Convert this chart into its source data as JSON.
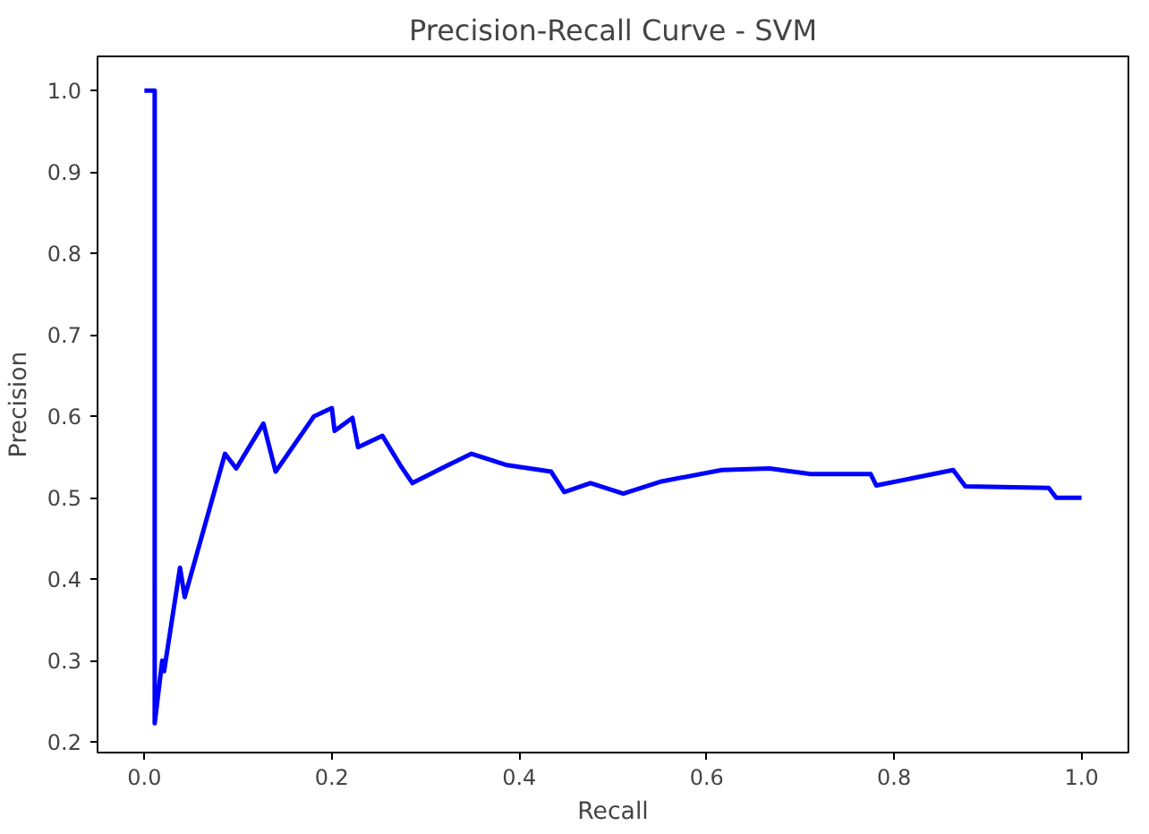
{
  "chart_data": {
    "type": "line",
    "title": "Precision-Recall Curve - SVM",
    "xlabel": "Recall",
    "ylabel": "Precision",
    "series": [
      {
        "color": "#0000ff",
        "x": [
          0.0,
          0.011,
          0.011,
          0.019,
          0.021,
          0.038,
          0.043,
          0.086,
          0.098,
          0.127,
          0.14,
          0.181,
          0.2,
          0.203,
          0.222,
          0.228,
          0.254,
          0.273,
          0.286,
          0.324,
          0.349,
          0.387,
          0.434,
          0.448,
          0.476,
          0.511,
          0.552,
          0.616,
          0.667,
          0.711,
          0.775,
          0.781,
          0.863,
          0.876,
          0.965,
          0.973,
          1.0
        ],
        "values": [
          1.0,
          1.0,
          0.223,
          0.3,
          0.287,
          0.414,
          0.378,
          0.554,
          0.536,
          0.591,
          0.532,
          0.6,
          0.61,
          0.582,
          0.598,
          0.562,
          0.576,
          0.54,
          0.518,
          0.54,
          0.554,
          0.54,
          0.532,
          0.507,
          0.518,
          0.505,
          0.52,
          0.534,
          0.536,
          0.529,
          0.529,
          0.515,
          0.534,
          0.514,
          0.512,
          0.5,
          0.5
        ]
      }
    ],
    "xlim": [
      -0.05,
      1.05
    ],
    "ylim": [
      0.187,
      1.042
    ],
    "xticks": [
      {
        "value": 0.0,
        "label": "0.0"
      },
      {
        "value": 0.2,
        "label": "0.2"
      },
      {
        "value": 0.4,
        "label": "0.4"
      },
      {
        "value": 0.6,
        "label": "0.6"
      },
      {
        "value": 0.8,
        "label": "0.8"
      },
      {
        "value": 1.0,
        "label": "1.0"
      }
    ],
    "yticks": [
      {
        "value": 0.2,
        "label": "0.2"
      },
      {
        "value": 0.3,
        "label": "0.3"
      },
      {
        "value": 0.4,
        "label": "0.4"
      },
      {
        "value": 0.5,
        "label": "0.5"
      },
      {
        "value": 0.6,
        "label": "0.6"
      },
      {
        "value": 0.7,
        "label": "0.7"
      },
      {
        "value": 0.8,
        "label": "0.8"
      },
      {
        "value": 0.9,
        "label": "0.9"
      },
      {
        "value": 1.0,
        "label": "1.0"
      }
    ],
    "grid": false
  }
}
